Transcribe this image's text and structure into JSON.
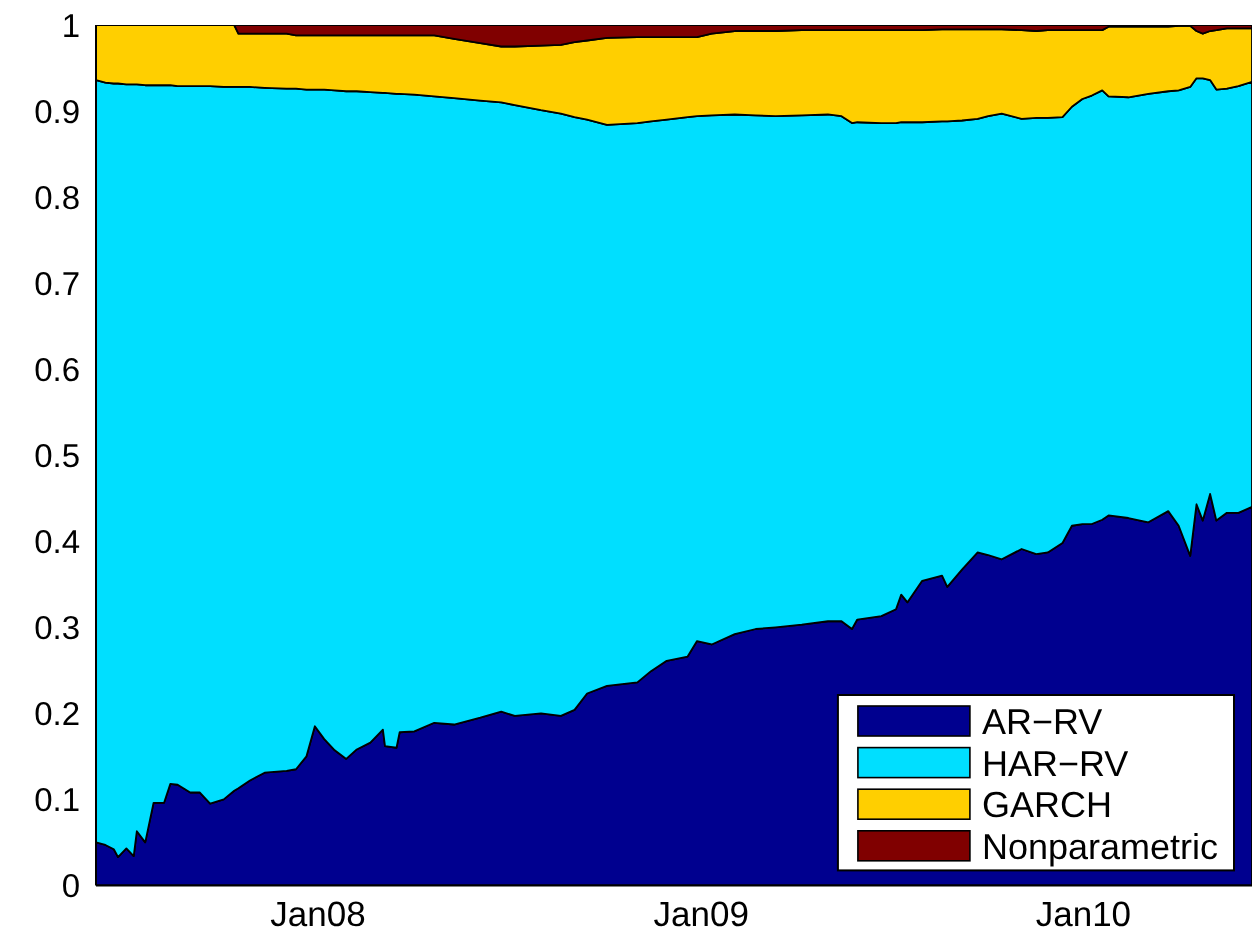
{
  "chart_data": {
    "type": "area",
    "stacked": true,
    "legend": "bottom right",
    "x": [
      "2007-06-03",
      "2007-06-12",
      "2007-06-20",
      "2007-06-24",
      "2007-07-02",
      "2007-07-09",
      "2007-07-12",
      "2007-07-20",
      "2007-07-28",
      "2007-08-07",
      "2007-08-13",
      "2007-08-20",
      "2007-09-01",
      "2007-09-10",
      "2007-09-20",
      "2007-10-03",
      "2007-10-13",
      "2007-10-17",
      "2007-10-28",
      "2007-11-11",
      "2007-12-02",
      "2007-12-11",
      "2007-12-21",
      "2007-12-29",
      "2008-01-07",
      "2008-01-17",
      "2008-01-28",
      "2008-02-07",
      "2008-02-20",
      "2008-03-03",
      "2008-03-05",
      "2008-03-16",
      "2008-03-19",
      "2008-04-02",
      "2008-04-21",
      "2008-05-10",
      "2008-06-04",
      "2008-06-24",
      "2008-07-07",
      "2008-08-01",
      "2008-08-20",
      "2008-09-02",
      "2008-09-14",
      "2008-10-03",
      "2008-11-01",
      "2008-11-14",
      "2008-11-29",
      "2008-12-19",
      "2008-12-28",
      "2009-01-11",
      "2009-02-02",
      "2009-02-22",
      "2009-03-13",
      "2009-04-07",
      "2009-05-02",
      "2009-05-15",
      "2009-05-25",
      "2009-05-30",
      "2009-06-22",
      "2009-07-06",
      "2009-07-11",
      "2009-07-17",
      "2009-07-31",
      "2009-08-19",
      "2009-08-24",
      "2009-09-07",
      "2009-09-22",
      "2009-10-02",
      "2009-10-15",
      "2009-11-03",
      "2009-11-17",
      "2009-11-28",
      "2009-12-12",
      "2009-12-21",
      "2009-12-31",
      "2010-01-09",
      "2010-01-19",
      "2010-01-25",
      "2010-02-13",
      "2010-03-04",
      "2010-03-23",
      "2010-04-02",
      "2010-04-13",
      "2010-04-19",
      "2010-04-25",
      "2010-05-02",
      "2010-05-08",
      "2010-05-18",
      "2010-05-29",
      "2010-06-11"
    ],
    "xlim": [
      "2007-06-03",
      "2010-06-11"
    ],
    "xticks": [
      {
        "value": "2008-01-01",
        "label": "Jan08"
      },
      {
        "value": "2009-01-01",
        "label": "Jan09"
      },
      {
        "value": "2010-01-01",
        "label": "Jan10"
      }
    ],
    "ylim": [
      0,
      1
    ],
    "yticks": [
      0,
      0.1,
      0.2,
      0.3,
      0.4,
      0.5,
      0.6,
      0.7,
      0.8,
      0.9,
      1
    ],
    "series": [
      {
        "name": "AR−RV",
        "color": "#00008f",
        "values": [
          0.05,
          0.047,
          0.042,
          0.033,
          0.043,
          0.034,
          0.063,
          0.05,
          0.096,
          0.096,
          0.118,
          0.117,
          0.108,
          0.108,
          0.095,
          0.1,
          0.11,
          0.113,
          0.122,
          0.131,
          0.133,
          0.135,
          0.15,
          0.185,
          0.17,
          0.157,
          0.147,
          0.158,
          0.166,
          0.181,
          0.162,
          0.16,
          0.178,
          0.179,
          0.189,
          0.187,
          0.195,
          0.202,
          0.197,
          0.2,
          0.197,
          0.204,
          0.223,
          0.232,
          0.236,
          0.249,
          0.261,
          0.266,
          0.284,
          0.28,
          0.292,
          0.298,
          0.3,
          0.303,
          0.307,
          0.307,
          0.298,
          0.309,
          0.313,
          0.321,
          0.338,
          0.329,
          0.354,
          0.36,
          0.347,
          0.367,
          0.387,
          0.384,
          0.379,
          0.391,
          0.385,
          0.387,
          0.398,
          0.418,
          0.42,
          0.42,
          0.425,
          0.43,
          0.427,
          0.422,
          0.435,
          0.418,
          0.383,
          0.443,
          0.424,
          0.455,
          0.424,
          0.433,
          0.433,
          0.44
        ]
      },
      {
        "name": "HAR−RV",
        "color": "#00dfff",
        "values": [
          0.886,
          0.886,
          0.89,
          0.899,
          0.888,
          0.897,
          0.868,
          0.88,
          0.834,
          0.834,
          0.812,
          0.812,
          0.821,
          0.821,
          0.834,
          0.828,
          0.818,
          0.815,
          0.806,
          0.796,
          0.793,
          0.791,
          0.775,
          0.74,
          0.755,
          0.767,
          0.776,
          0.765,
          0.756,
          0.74,
          0.759,
          0.76,
          0.742,
          0.74,
          0.728,
          0.728,
          0.717,
          0.708,
          0.71,
          0.701,
          0.7,
          0.689,
          0.667,
          0.652,
          0.65,
          0.639,
          0.629,
          0.627,
          0.61,
          0.615,
          0.604,
          0.597,
          0.594,
          0.592,
          0.589,
          0.587,
          0.588,
          0.578,
          0.573,
          0.565,
          0.549,
          0.558,
          0.533,
          0.528,
          0.541,
          0.522,
          0.504,
          0.51,
          0.518,
          0.5,
          0.507,
          0.505,
          0.495,
          0.487,
          0.494,
          0.498,
          0.499,
          0.487,
          0.489,
          0.498,
          0.488,
          0.506,
          0.545,
          0.495,
          0.514,
          0.481,
          0.501,
          0.493,
          0.496,
          0.494
        ]
      },
      {
        "name": "GARCH",
        "color": "#ffcf00",
        "values": [
          0.064,
          0.067,
          0.068,
          0.068,
          0.069,
          0.069,
          0.069,
          0.07,
          0.07,
          0.07,
          0.07,
          0.071,
          0.071,
          0.071,
          0.071,
          0.072,
          0.072,
          0.062,
          0.062,
          0.063,
          0.064,
          0.062,
          0.063,
          0.063,
          0.063,
          0.064,
          0.065,
          0.065,
          0.066,
          0.067,
          0.067,
          0.068,
          0.068,
          0.069,
          0.071,
          0.069,
          0.067,
          0.065,
          0.068,
          0.075,
          0.08,
          0.087,
          0.092,
          0.101,
          0.1,
          0.098,
          0.096,
          0.093,
          0.092,
          0.095,
          0.097,
          0.098,
          0.099,
          0.099,
          0.098,
          0.1,
          0.108,
          0.107,
          0.108,
          0.108,
          0.107,
          0.107,
          0.107,
          0.107,
          0.107,
          0.106,
          0.104,
          0.101,
          0.098,
          0.103,
          0.101,
          0.102,
          0.101,
          0.089,
          0.08,
          0.076,
          0.07,
          0.081,
          0.082,
          0.078,
          0.075,
          0.075,
          0.071,
          0.055,
          0.052,
          0.057,
          0.069,
          0.07,
          0.067,
          0.062
        ]
      },
      {
        "name": "Nonparametric",
        "color": "#800000",
        "values": [
          0,
          0,
          0,
          0,
          0,
          0,
          0,
          0,
          0,
          0,
          0,
          0,
          0,
          0,
          0,
          0,
          0,
          0.01,
          0.01,
          0.01,
          0.01,
          0.012,
          0.012,
          0.012,
          0.012,
          0.012,
          0.012,
          0.012,
          0.012,
          0.012,
          0.012,
          0.012,
          0.012,
          0.012,
          0.012,
          0.016,
          0.021,
          0.025,
          0.025,
          0.024,
          0.023,
          0.02,
          0.018,
          0.015,
          0.014,
          0.014,
          0.014,
          0.014,
          0.014,
          0.01,
          0.007,
          0.007,
          0.007,
          0.006,
          0.006,
          0.006,
          0.006,
          0.006,
          0.006,
          0.006,
          0.006,
          0.006,
          0.006,
          0.005,
          0.005,
          0.005,
          0.005,
          0.005,
          0.005,
          0.006,
          0.007,
          0.006,
          0.006,
          0.006,
          0.006,
          0.006,
          0.006,
          0.002,
          0.002,
          0.002,
          0.002,
          0.001,
          0.001,
          0.007,
          0.01,
          0.007,
          0.006,
          0.004,
          0.004,
          0.004
        ]
      }
    ]
  }
}
